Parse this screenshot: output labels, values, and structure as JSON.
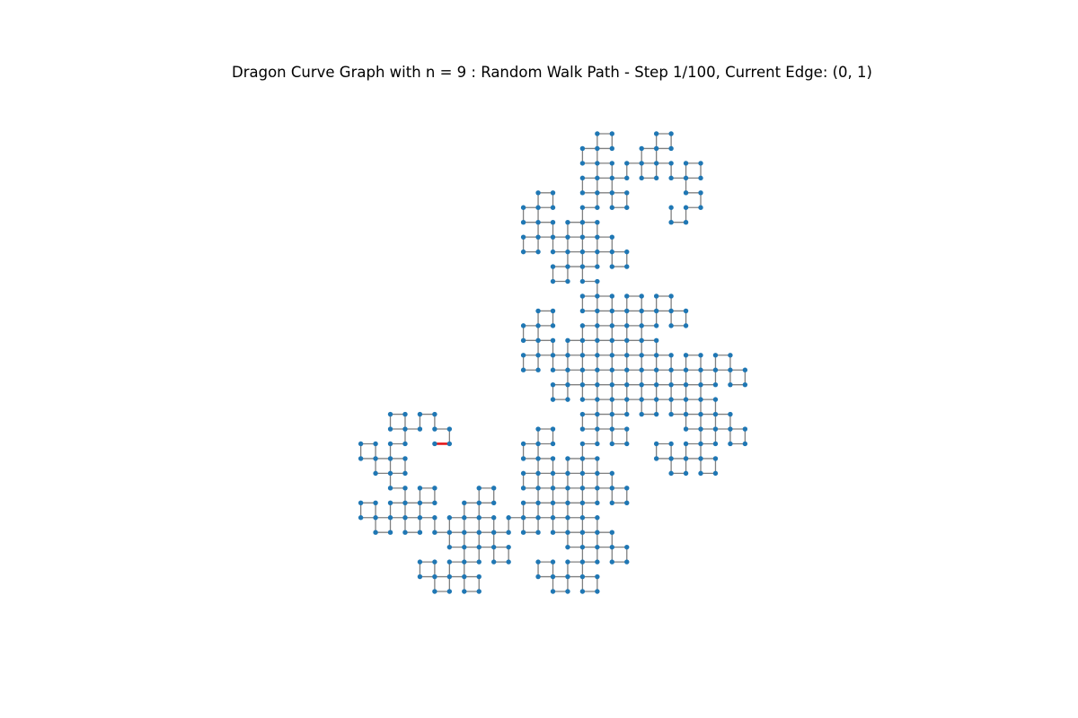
{
  "figure": {
    "title": "Dragon Curve Graph with n = 9 : Random Walk Path - Step 1/100, Current Edge: (0, 1)"
  },
  "graph": {
    "iterations": 9,
    "node_color": "#1f77b4",
    "edge_color": "#808080",
    "highlight_color": "#e31a1c",
    "highlight_edge": [
      0,
      1
    ]
  },
  "walk": {
    "step": 1,
    "total_steps": 100
  }
}
